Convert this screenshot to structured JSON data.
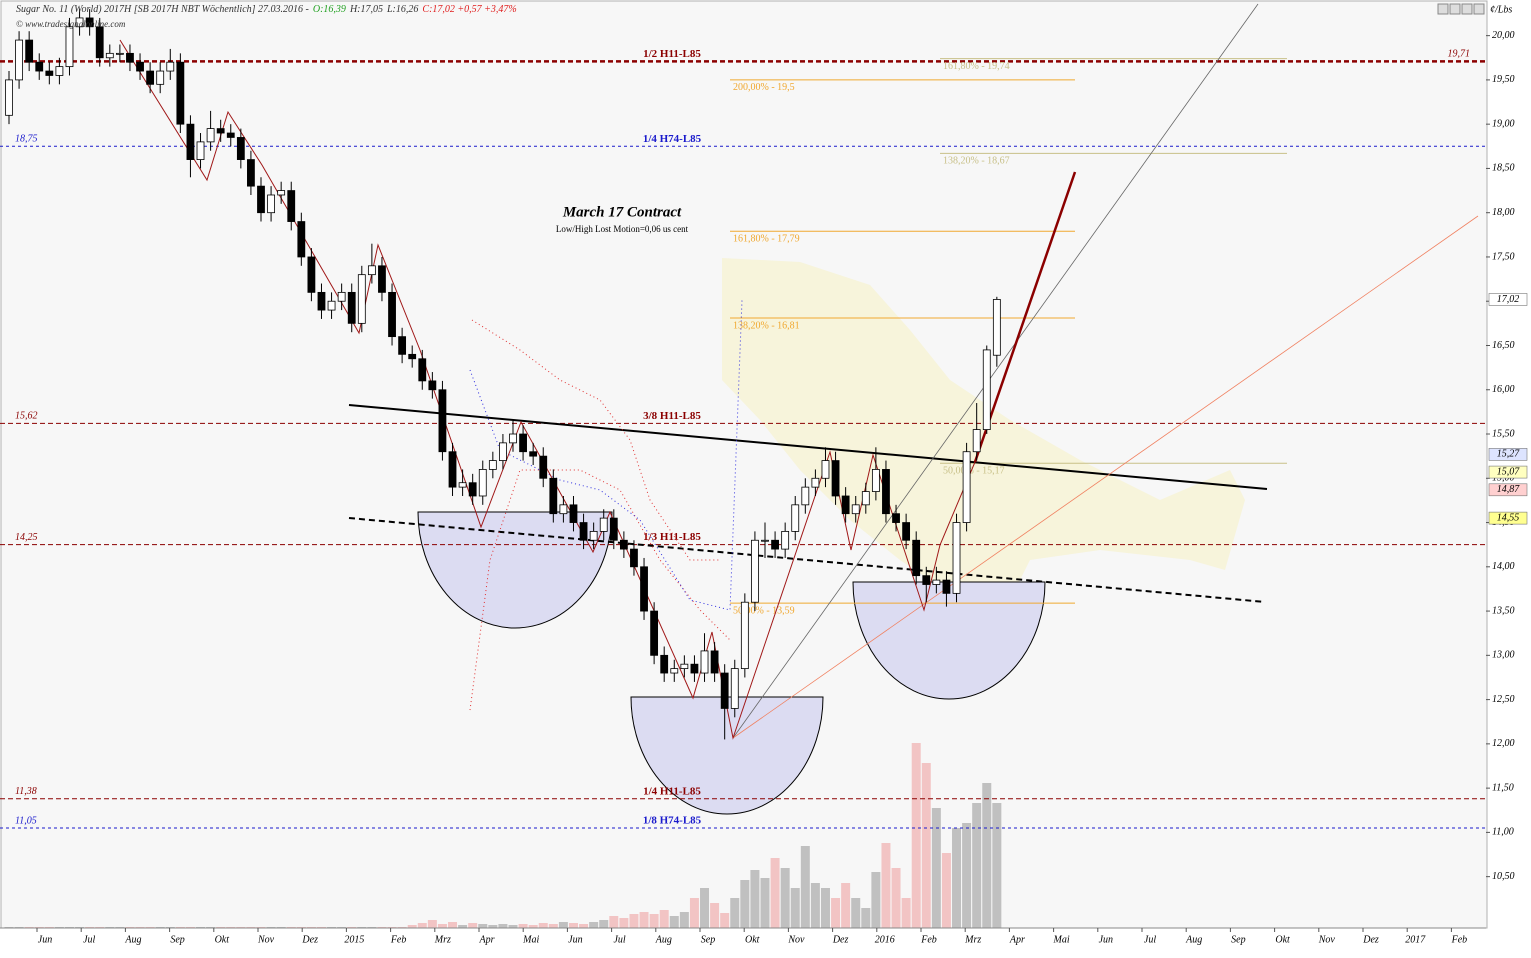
{
  "header": {
    "title": "Sugar No. 11 (World) 2017H [SB 2017H NBT  Wöchentlich] 27.03.2016 -",
    "open": "O:16,39",
    "high": "H:17,05",
    "low": "L:16,26",
    "close": "C:17,02 +0,57 +3,47%",
    "copyright": "© www.tradesignalonline.com"
  },
  "chart_data": {
    "type": "candlestick",
    "title": "March 17 Contract",
    "subtitle": "Low/High Lost Motion=0,06 us cent",
    "unit": "¢/Lbs",
    "x_labels": [
      "Jun",
      "Jul",
      "Aug",
      "Sep",
      "Okt",
      "Nov",
      "Dez",
      "2015",
      "Feb",
      "Mrz",
      "Apr",
      "Mai",
      "Jun",
      "Jul",
      "Aug",
      "Sep",
      "Okt",
      "Nov",
      "Dez",
      "2016",
      "Feb",
      "Mrz",
      "Apr",
      "Mai",
      "Jun",
      "Jul",
      "Aug",
      "Sep",
      "Okt",
      "Nov",
      "Dez",
      "2017",
      "Feb"
    ],
    "ylim": [
      9.92,
      20.38
    ],
    "yticks": [
      {
        "value": 10.5,
        "label": "10,50"
      },
      {
        "value": 11,
        "label": "11,00"
      },
      {
        "value": 11.5,
        "label": "11,50"
      },
      {
        "value": 12,
        "label": "12,00"
      },
      {
        "value": 12.5,
        "label": "12,50"
      },
      {
        "value": 13,
        "label": "13,00"
      },
      {
        "value": 13.5,
        "label": "13,50"
      },
      {
        "value": 14,
        "label": "14,00"
      },
      {
        "value": 14.5,
        "label": "14,50"
      },
      {
        "value": 15,
        "label": "15,00"
      },
      {
        "value": 15.5,
        "label": "15,50"
      },
      {
        "value": 16,
        "label": "16,00"
      },
      {
        "value": 16.5,
        "label": "16,50"
      },
      {
        "value": 17,
        "label": "17,00"
      },
      {
        "value": 17.5,
        "label": "17,50"
      },
      {
        "value": 18,
        "label": "18,00"
      },
      {
        "value": 18.5,
        "label": "18,50"
      },
      {
        "value": 19,
        "label": "19,00"
      },
      {
        "value": 19.5,
        "label": "19,50"
      },
      {
        "value": 20,
        "label": "20,00"
      }
    ],
    "candles": [
      [
        19.1,
        19.6,
        19.0,
        19.5
      ],
      [
        19.5,
        20.05,
        19.4,
        19.95
      ],
      [
        19.95,
        20.05,
        19.6,
        19.7
      ],
      [
        19.7,
        19.8,
        19.5,
        19.6
      ],
      [
        19.6,
        19.7,
        19.45,
        19.55
      ],
      [
        19.55,
        19.75,
        19.45,
        19.65
      ],
      [
        19.65,
        20.2,
        19.55,
        20.1
      ],
      [
        20.1,
        20.3,
        20.0,
        20.2
      ],
      [
        20.2,
        20.3,
        20.0,
        20.1
      ],
      [
        20.1,
        20.2,
        19.65,
        19.75
      ],
      [
        19.75,
        19.9,
        19.65,
        19.8
      ],
      [
        19.8,
        19.9,
        19.7,
        19.8
      ],
      [
        19.8,
        19.9,
        19.6,
        19.7
      ],
      [
        19.7,
        19.8,
        19.5,
        19.6
      ],
      [
        19.6,
        19.7,
        19.35,
        19.45
      ],
      [
        19.45,
        19.7,
        19.35,
        19.6
      ],
      [
        19.6,
        19.85,
        19.5,
        19.7
      ],
      [
        19.7,
        19.8,
        18.9,
        19.0
      ],
      [
        19.0,
        19.1,
        18.4,
        18.6
      ],
      [
        18.6,
        18.9,
        18.5,
        18.8
      ],
      [
        18.8,
        19.15,
        18.7,
        18.95
      ],
      [
        18.95,
        19.05,
        18.8,
        18.9
      ],
      [
        18.9,
        19.0,
        18.75,
        18.85
      ],
      [
        18.85,
        18.95,
        18.5,
        18.6
      ],
      [
        18.6,
        18.7,
        18.2,
        18.3
      ],
      [
        18.3,
        18.4,
        17.9,
        18.0
      ],
      [
        18.0,
        18.3,
        17.9,
        18.2
      ],
      [
        18.2,
        18.35,
        18.1,
        18.25
      ],
      [
        18.25,
        18.35,
        17.8,
        17.9
      ],
      [
        17.9,
        18.0,
        17.4,
        17.5
      ],
      [
        17.5,
        17.6,
        17.0,
        17.1
      ],
      [
        17.1,
        17.2,
        16.8,
        16.9
      ],
      [
        16.9,
        17.1,
        16.8,
        17.0
      ],
      [
        17.0,
        17.2,
        16.9,
        17.1
      ],
      [
        17.1,
        17.2,
        16.65,
        16.75
      ],
      [
        16.75,
        17.4,
        16.65,
        17.3
      ],
      [
        17.3,
        17.65,
        17.2,
        17.4
      ],
      [
        17.4,
        17.5,
        17.0,
        17.1
      ],
      [
        17.1,
        17.2,
        16.5,
        16.6
      ],
      [
        16.6,
        16.7,
        16.3,
        16.4
      ],
      [
        16.4,
        16.5,
        16.25,
        16.35
      ],
      [
        16.35,
        16.45,
        16.0,
        16.1
      ],
      [
        16.1,
        16.2,
        15.9,
        16.0
      ],
      [
        16.0,
        16.1,
        15.2,
        15.3
      ],
      [
        15.3,
        15.4,
        14.8,
        14.9
      ],
      [
        14.9,
        15.1,
        14.8,
        14.95
      ],
      [
        14.95,
        15.05,
        14.7,
        14.8
      ],
      [
        14.8,
        15.2,
        14.7,
        15.1
      ],
      [
        15.1,
        15.3,
        15.0,
        15.2
      ],
      [
        15.2,
        15.5,
        15.1,
        15.4
      ],
      [
        15.4,
        15.65,
        15.3,
        15.5
      ],
      [
        15.5,
        15.6,
        15.2,
        15.3
      ],
      [
        15.3,
        15.4,
        15.15,
        15.25
      ],
      [
        15.25,
        15.35,
        14.9,
        15.0
      ],
      [
        15.0,
        15.1,
        14.5,
        14.6
      ],
      [
        14.6,
        14.8,
        14.5,
        14.7
      ],
      [
        14.7,
        14.8,
        14.4,
        14.5
      ],
      [
        14.5,
        14.6,
        14.2,
        14.3
      ],
      [
        14.3,
        14.5,
        14.2,
        14.4
      ],
      [
        14.4,
        14.65,
        14.3,
        14.55
      ],
      [
        14.55,
        14.65,
        14.2,
        14.3
      ],
      [
        14.3,
        14.4,
        14.1,
        14.2
      ],
      [
        14.2,
        14.3,
        13.9,
        14.0
      ],
      [
        14.0,
        14.1,
        13.4,
        13.5
      ],
      [
        13.5,
        13.6,
        12.9,
        13.0
      ],
      [
        13.0,
        13.1,
        12.7,
        12.8
      ],
      [
        12.8,
        12.95,
        12.7,
        12.85
      ],
      [
        12.85,
        13.0,
        12.75,
        12.9
      ],
      [
        12.9,
        13.0,
        12.7,
        12.8
      ],
      [
        12.8,
        13.25,
        12.7,
        13.05
      ],
      [
        13.05,
        13.15,
        12.7,
        12.8
      ],
      [
        12.8,
        12.9,
        12.05,
        12.4
      ],
      [
        12.4,
        12.95,
        12.3,
        12.85
      ],
      [
        12.85,
        13.7,
        12.75,
        13.6
      ],
      [
        13.6,
        14.4,
        13.5,
        14.3
      ],
      [
        14.3,
        14.5,
        14.1,
        14.3
      ],
      [
        14.3,
        14.4,
        14.1,
        14.2
      ],
      [
        14.2,
        14.5,
        14.1,
        14.4
      ],
      [
        14.4,
        14.8,
        14.3,
        14.7
      ],
      [
        14.7,
        15.0,
        14.6,
        14.9
      ],
      [
        14.9,
        15.1,
        14.8,
        15.0
      ],
      [
        15.0,
        15.35,
        14.9,
        15.2
      ],
      [
        15.2,
        15.3,
        14.7,
        14.8
      ],
      [
        14.8,
        14.9,
        14.5,
        14.6
      ],
      [
        14.6,
        14.8,
        14.5,
        14.7
      ],
      [
        14.7,
        14.95,
        14.6,
        14.85
      ],
      [
        14.85,
        15.35,
        14.75,
        15.1
      ],
      [
        15.1,
        15.2,
        14.5,
        14.6
      ],
      [
        14.6,
        14.7,
        14.4,
        14.5
      ],
      [
        14.5,
        14.6,
        14.2,
        14.3
      ],
      [
        14.3,
        14.4,
        13.8,
        13.9
      ],
      [
        13.9,
        14.0,
        13.6,
        13.8
      ],
      [
        13.8,
        14.0,
        13.7,
        13.85
      ],
      [
        13.85,
        13.95,
        13.55,
        13.7
      ],
      [
        13.7,
        14.6,
        13.6,
        14.5
      ],
      [
        14.5,
        15.4,
        14.4,
        15.3
      ],
      [
        15.3,
        15.85,
        15.2,
        15.55
      ],
      [
        15.55,
        16.5,
        15.5,
        16.45
      ],
      [
        16.39,
        17.05,
        16.26,
        17.02
      ]
    ],
    "volume": [
      1,
      1,
      1,
      1,
      1,
      1,
      1,
      1,
      1,
      1,
      1,
      1,
      1,
      1,
      1,
      1,
      1,
      1,
      1,
      1,
      1,
      1,
      1,
      1,
      1,
      1,
      1,
      1,
      1,
      1,
      1,
      1,
      1,
      1,
      1,
      1,
      1,
      1,
      1,
      1,
      3,
      5,
      8,
      4,
      6,
      3,
      5,
      4,
      3,
      4,
      3,
      4,
      3,
      5,
      4,
      6,
      5,
      4,
      6,
      8,
      12,
      10,
      14,
      16,
      14,
      18,
      12,
      16,
      30,
      40,
      25,
      15,
      30,
      48,
      58,
      50,
      70,
      60,
      40,
      82,
      45,
      40,
      30,
      45,
      30,
      20,
      56,
      85,
      60,
      30,
      185,
      165,
      120,
      75,
      100,
      105,
      125,
      145,
      125
    ],
    "colors": {
      "up": "#ffffff",
      "down": "#000000",
      "wick": "#000000",
      "volume_up": "#c0c0c0",
      "volume_down": "#f2c4c4"
    },
    "levels": [
      {
        "value": 19.71,
        "label": "19,71",
        "name": "1/2 H11-L85",
        "color": "#8b0000",
        "label_side": "right"
      },
      {
        "value": 18.75,
        "label": "18,75",
        "name": "1/4 H74-L85",
        "color": "#1a1acc",
        "label_side": "left"
      },
      {
        "value": 15.62,
        "label": "15,62",
        "name": "3/8 H11-L85",
        "color": "#8b0000",
        "label_side": "left"
      },
      {
        "value": 14.25,
        "label": "14,25",
        "name": "1/3 H11-L85",
        "color": "#8b0000",
        "label_side": "left"
      },
      {
        "value": 11.38,
        "label": "11,38",
        "name": "1/4 H11-L85",
        "color": "#8b0000",
        "label_side": "left"
      },
      {
        "value": 11.05,
        "label": "11,05",
        "name": "1/8 H74-L85",
        "color": "#1a1acc",
        "label_side": "left"
      }
    ],
    "fib_levels": [
      {
        "value": 19.74,
        "label": "161,80% - 19,74",
        "color": "#c8c088"
      },
      {
        "value": 19.5,
        "label": "200,00% - 19,5",
        "color": "#f0a830"
      },
      {
        "value": 18.67,
        "label": "138,20% - 18,67",
        "color": "#c8c088"
      },
      {
        "value": 17.79,
        "label": "161,80% - 17,79",
        "color": "#f0a830"
      },
      {
        "value": 16.81,
        "label": "138,20% - 16,81",
        "color": "#f0a830"
      },
      {
        "value": 15.17,
        "label": "50,00% - 15,17",
        "color": "#c8c088"
      },
      {
        "value": 13.59,
        "label": "50,00% - 13,59",
        "color": "#f0a830"
      }
    ],
    "price_flags": [
      {
        "value": 17.02,
        "label": "17,02",
        "color": "#ffffff"
      },
      {
        "value": 15.27,
        "label": "15,27",
        "color": "#dde4ff"
      },
      {
        "value": 15.07,
        "label": "15,07",
        "color": "#ffffc0"
      },
      {
        "value": 14.87,
        "label": "14,87",
        "color": "#ffd0d0"
      },
      {
        "value": 14.55,
        "label": "14,55",
        "color": "#ffff90"
      }
    ]
  }
}
